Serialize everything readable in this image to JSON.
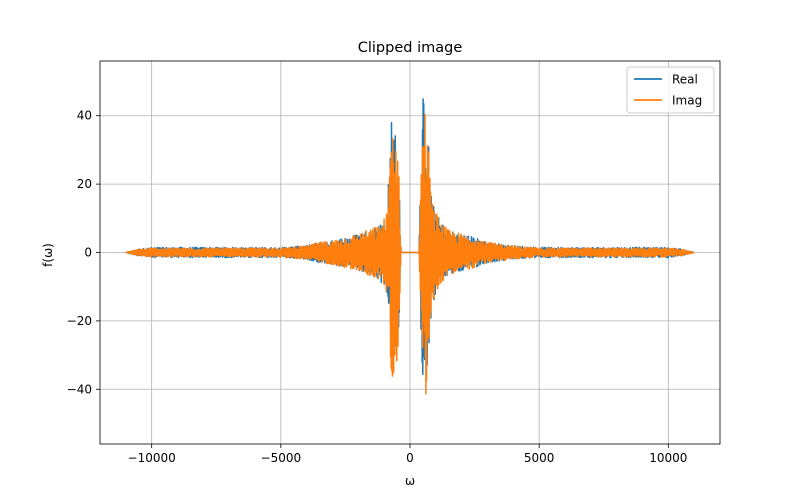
{
  "chart_data": {
    "type": "line",
    "title": "Clipped image",
    "xlabel": "ω",
    "ylabel": "f(ω)",
    "xlim": [
      -12000,
      12000
    ],
    "ylim": [
      -56,
      56
    ],
    "xticks": [
      -10000,
      -5000,
      0,
      5000,
      10000
    ],
    "xtick_labels": [
      "−10000",
      "−5000",
      "0",
      "5000",
      "10000"
    ],
    "yticks": [
      -40,
      -20,
      0,
      20,
      40
    ],
    "ytick_labels": [
      "−40",
      "−20",
      "0",
      "20",
      "40"
    ],
    "grid": true,
    "legend_position": "top-right",
    "x_range": [
      -11000,
      11000
    ],
    "gap": [
      -350,
      350
    ],
    "series": [
      {
        "name": "Real",
        "color": "#1f77b4",
        "envelope": {
          "x": [
            -11000,
            -10500,
            -10000,
            -9000,
            -8000,
            -7000,
            -6000,
            -5000,
            -4000,
            -3500,
            -3000,
            -2500,
            -2000,
            -1500,
            -1200,
            -1000,
            -900,
            -800,
            -700,
            -600,
            -500,
            -400,
            -350,
            350,
            400,
            500,
            600,
            700,
            800,
            900,
            1000,
            1200,
            1500,
            2000,
            2500,
            3000,
            3500,
            4000,
            5000,
            6000,
            7000,
            8000,
            9000,
            10000,
            10500,
            11000
          ],
          "upper": [
            0,
            1,
            1.5,
            1.5,
            1.5,
            1.5,
            1.5,
            1.5,
            2,
            3,
            3.5,
            4.5,
            5.5,
            7,
            8,
            10,
            12,
            25,
            47,
            36,
            36,
            20,
            0,
            0,
            20,
            46,
            47,
            36,
            20,
            14,
            12,
            9,
            6.5,
            5.5,
            4.5,
            3,
            2.5,
            2,
            1.5,
            1.5,
            1.5,
            1.5,
            1.5,
            1.5,
            1,
            0
          ],
          "lower": [
            0,
            -1,
            -1.5,
            -1.5,
            -1.5,
            -1.5,
            -1.5,
            -1.5,
            -2,
            -3,
            -3.5,
            -4.5,
            -5.5,
            -7,
            -8,
            -10,
            -12,
            -18,
            -35,
            -37,
            -35,
            -20,
            0,
            0,
            -20,
            -37,
            -36,
            -33,
            -20,
            -15,
            -12,
            -9,
            -6.5,
            -5.5,
            -4.5,
            -3,
            -2.5,
            -2,
            -1.5,
            -1.5,
            -1.5,
            -1.5,
            -1.5,
            -1.5,
            -1,
            0
          ]
        }
      },
      {
        "name": "Imag",
        "color": "#ff7f0e",
        "envelope": {
          "x": [
            -11000,
            -10500,
            -10000,
            -9000,
            -8000,
            -7000,
            -6000,
            -5000,
            -4000,
            -3500,
            -3000,
            -2500,
            -2000,
            -1500,
            -1200,
            -1000,
            -900,
            -800,
            -700,
            -600,
            -500,
            -400,
            -350,
            350,
            400,
            500,
            600,
            700,
            800,
            900,
            1000,
            1200,
            1500,
            2000,
            2500,
            3000,
            3500,
            4000,
            5000,
            6000,
            7000,
            8000,
            9000,
            10000,
            10500,
            11000
          ],
          "upper": [
            0,
            1,
            1.3,
            1.3,
            1.3,
            1.3,
            1.3,
            1.3,
            2,
            3,
            3.5,
            4.5,
            5.5,
            7,
            8,
            10,
            12,
            22,
            44,
            35,
            35,
            18,
            0,
            0,
            18,
            42,
            44,
            35,
            18,
            14,
            12,
            9,
            6.5,
            5.5,
            4.5,
            3,
            2.5,
            2,
            1.3,
            1.3,
            1.3,
            1.3,
            1.3,
            1.3,
            1,
            0
          ],
          "lower": [
            0,
            -1,
            -1.3,
            -1.3,
            -1.3,
            -1.3,
            -1.3,
            -1.3,
            -2,
            -3,
            -3.5,
            -4.5,
            -5.5,
            -7,
            -8,
            -10,
            -12,
            -20,
            -44,
            -34,
            -33,
            -18,
            0,
            0,
            -18,
            -43,
            -44,
            -33,
            -18,
            -14,
            -12,
            -9,
            -6.5,
            -5.5,
            -4.5,
            -3,
            -2.5,
            -2,
            -1.3,
            -1.3,
            -1.3,
            -1.3,
            -1.3,
            -1.3,
            -1,
            0
          ]
        }
      }
    ]
  }
}
